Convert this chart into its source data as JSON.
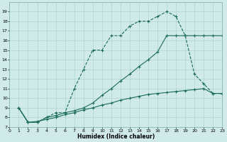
{
  "xlabel": "Humidex (Indice chaleur)",
  "background_color": "#d0eaea",
  "line_color": "#1a6b5a",
  "line1_x": [
    1,
    2,
    3,
    4,
    5,
    6,
    7,
    8,
    9,
    10,
    11,
    12,
    13,
    14,
    15,
    16,
    17,
    18,
    19,
    20,
    21,
    22,
    23
  ],
  "line1_y": [
    9,
    7.5,
    7.5,
    8.0,
    8.5,
    8.5,
    11.0,
    13.0,
    15.0,
    15.0,
    16.5,
    16.5,
    17.5,
    18.0,
    18.0,
    18.5,
    19.0,
    18.5,
    16.5,
    12.5,
    11.5,
    10.5,
    10.5
  ],
  "line2_x": [
    1,
    2,
    3,
    4,
    5,
    6,
    7,
    8,
    9,
    10,
    11,
    12,
    13,
    14,
    15,
    16,
    17,
    18,
    19,
    20,
    21,
    22,
    23
  ],
  "line2_y": [
    9,
    7.5,
    7.6,
    7.8,
    8.0,
    8.3,
    8.5,
    8.8,
    9.0,
    9.3,
    9.5,
    9.8,
    10.0,
    10.2,
    10.4,
    10.5,
    10.6,
    10.7,
    10.8,
    10.9,
    11.0,
    10.5,
    10.5
  ],
  "line3_x": [
    1,
    2,
    3,
    4,
    5,
    6,
    7,
    8,
    9,
    10,
    11,
    12,
    13,
    14,
    15,
    16,
    17,
    18,
    19,
    20,
    21,
    22,
    23
  ],
  "line3_y": [
    9,
    7.5,
    7.5,
    8.0,
    8.2,
    8.5,
    8.7,
    9.0,
    9.5,
    10.3,
    11.0,
    11.8,
    12.5,
    13.3,
    14.0,
    14.8,
    16.5,
    16.5,
    16.5,
    16.5,
    16.5,
    16.5,
    16.5
  ],
  "ylim": [
    7,
    20
  ],
  "xlim": [
    0,
    23
  ],
  "yticks": [
    7,
    8,
    9,
    10,
    11,
    12,
    13,
    14,
    15,
    16,
    17,
    18,
    19
  ],
  "xticks": [
    0,
    1,
    2,
    3,
    4,
    5,
    6,
    7,
    8,
    9,
    10,
    11,
    12,
    13,
    14,
    15,
    16,
    17,
    18,
    19,
    20,
    21,
    22,
    23
  ]
}
